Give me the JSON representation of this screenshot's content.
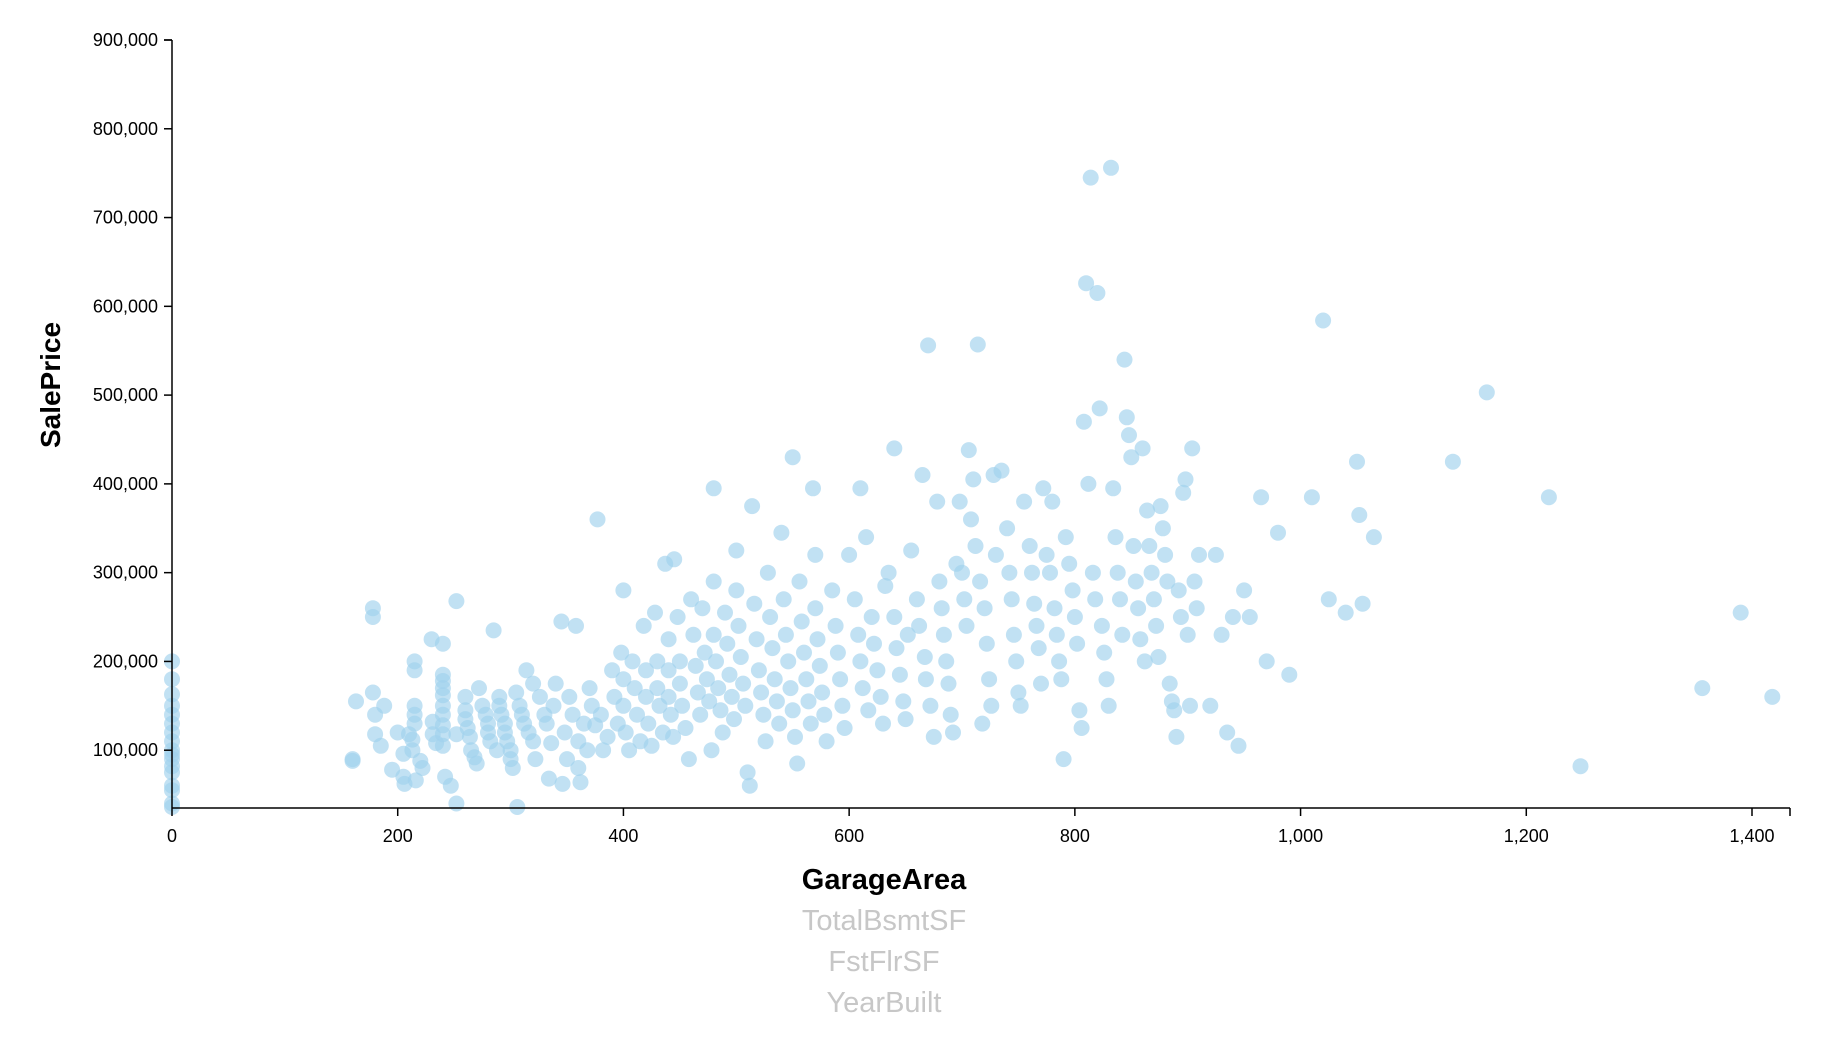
{
  "chart_data": {
    "type": "scatter",
    "xlabel": "GarageArea",
    "ylabel": "SalePrice",
    "xlim": [
      0,
      1430
    ],
    "ylim": [
      34900,
      900000
    ],
    "x_ticks": [
      0,
      200,
      400,
      600,
      800,
      1000,
      1200,
      1400
    ],
    "x_tick_labels": [
      "0",
      "200",
      "400",
      "600",
      "800",
      "1,000",
      "1,200",
      "1,400"
    ],
    "y_ticks": [
      100000,
      200000,
      300000,
      400000,
      500000,
      600000,
      700000,
      800000,
      900000
    ],
    "y_tick_labels": [
      "100,000",
      "200,000",
      "300,000",
      "400,000",
      "500,000",
      "600,000",
      "700,000",
      "800,000",
      "900,000"
    ],
    "grid": false,
    "point_color": "#9fd1ec",
    "points": [
      [
        0,
        200000
      ],
      [
        0,
        180000
      ],
      [
        0,
        163000
      ],
      [
        0,
        150000
      ],
      [
        0,
        140000
      ],
      [
        0,
        130000
      ],
      [
        0,
        120000
      ],
      [
        0,
        110000
      ],
      [
        0,
        100000
      ],
      [
        0,
        95000
      ],
      [
        0,
        90000
      ],
      [
        0,
        82000
      ],
      [
        0,
        75000
      ],
      [
        0,
        60000
      ],
      [
        0,
        55000
      ],
      [
        0,
        40000
      ],
      [
        0,
        36000
      ],
      [
        160,
        90000
      ],
      [
        160,
        88000
      ],
      [
        163,
        155000
      ],
      [
        178,
        260000
      ],
      [
        178,
        250000
      ],
      [
        178,
        165000
      ],
      [
        180,
        140000
      ],
      [
        180,
        118000
      ],
      [
        185,
        105000
      ],
      [
        188,
        150000
      ],
      [
        195,
        78000
      ],
      [
        200,
        120000
      ],
      [
        205,
        96000
      ],
      [
        205,
        70000
      ],
      [
        206,
        62000
      ],
      [
        210,
        118000
      ],
      [
        213,
        112000
      ],
      [
        213,
        100000
      ],
      [
        215,
        200000
      ],
      [
        215,
        190000
      ],
      [
        215,
        150000
      ],
      [
        215,
        140000
      ],
      [
        215,
        130000
      ],
      [
        216,
        66000
      ],
      [
        220,
        88000
      ],
      [
        222,
        80000
      ],
      [
        230,
        225000
      ],
      [
        231,
        132000
      ],
      [
        231,
        118000
      ],
      [
        234,
        108000
      ],
      [
        240,
        220000
      ],
      [
        240,
        185000
      ],
      [
        240,
        178000
      ],
      [
        240,
        170000
      ],
      [
        240,
        162000
      ],
      [
        240,
        150000
      ],
      [
        240,
        140000
      ],
      [
        240,
        128000
      ],
      [
        240,
        118000
      ],
      [
        240,
        105000
      ],
      [
        242,
        70000
      ],
      [
        247,
        60000
      ],
      [
        252,
        40000
      ],
      [
        252,
        268000
      ],
      [
        252,
        118000
      ],
      [
        260,
        160000
      ],
      [
        260,
        145000
      ],
      [
        260,
        135000
      ],
      [
        262,
        125000
      ],
      [
        264,
        115000
      ],
      [
        265,
        100000
      ],
      [
        268,
        92000
      ],
      [
        270,
        85000
      ],
      [
        272,
        170000
      ],
      [
        275,
        150000
      ],
      [
        278,
        140000
      ],
      [
        280,
        130000
      ],
      [
        280,
        120000
      ],
      [
        282,
        110000
      ],
      [
        285,
        235000
      ],
      [
        288,
        100000
      ],
      [
        290,
        160000
      ],
      [
        290,
        150000
      ],
      [
        292,
        140000
      ],
      [
        295,
        130000
      ],
      [
        295,
        120000
      ],
      [
        297,
        110000
      ],
      [
        300,
        100000
      ],
      [
        300,
        90000
      ],
      [
        302,
        80000
      ],
      [
        305,
        165000
      ],
      [
        306,
        36000
      ],
      [
        308,
        150000
      ],
      [
        310,
        140000
      ],
      [
        312,
        130000
      ],
      [
        314,
        190000
      ],
      [
        316,
        120000
      ],
      [
        320,
        175000
      ],
      [
        320,
        110000
      ],
      [
        322,
        90000
      ],
      [
        326,
        160000
      ],
      [
        330,
        140000
      ],
      [
        332,
        130000
      ],
      [
        334,
        68000
      ],
      [
        336,
        108000
      ],
      [
        338,
        150000
      ],
      [
        340,
        175000
      ],
      [
        345,
        245000
      ],
      [
        346,
        62000
      ],
      [
        348,
        120000
      ],
      [
        350,
        90000
      ],
      [
        352,
        160000
      ],
      [
        355,
        140000
      ],
      [
        358,
        240000
      ],
      [
        360,
        80000
      ],
      [
        360,
        110000
      ],
      [
        362,
        64000
      ],
      [
        365,
        130000
      ],
      [
        368,
        100000
      ],
      [
        370,
        170000
      ],
      [
        372,
        150000
      ],
      [
        375,
        128000
      ],
      [
        377,
        360000
      ],
      [
        380,
        140000
      ],
      [
        382,
        100000
      ],
      [
        386,
        115000
      ],
      [
        390,
        190000
      ],
      [
        392,
        160000
      ],
      [
        395,
        130000
      ],
      [
        398,
        210000
      ],
      [
        400,
        280000
      ],
      [
        400,
        180000
      ],
      [
        400,
        150000
      ],
      [
        402,
        120000
      ],
      [
        405,
        100000
      ],
      [
        408,
        200000
      ],
      [
        410,
        170000
      ],
      [
        412,
        140000
      ],
      [
        415,
        110000
      ],
      [
        418,
        240000
      ],
      [
        420,
        190000
      ],
      [
        420,
        160000
      ],
      [
        422,
        130000
      ],
      [
        425,
        105000
      ],
      [
        428,
        255000
      ],
      [
        430,
        200000
      ],
      [
        430,
        170000
      ],
      [
        432,
        150000
      ],
      [
        435,
        120000
      ],
      [
        437,
        310000
      ],
      [
        440,
        225000
      ],
      [
        440,
        190000
      ],
      [
        440,
        160000
      ],
      [
        442,
        140000
      ],
      [
        444,
        115000
      ],
      [
        445,
        315000
      ],
      [
        448,
        250000
      ],
      [
        450,
        200000
      ],
      [
        450,
        175000
      ],
      [
        452,
        150000
      ],
      [
        455,
        125000
      ],
      [
        458,
        90000
      ],
      [
        460,
        270000
      ],
      [
        462,
        230000
      ],
      [
        464,
        195000
      ],
      [
        466,
        165000
      ],
      [
        468,
        140000
      ],
      [
        470,
        260000
      ],
      [
        472,
        210000
      ],
      [
        474,
        180000
      ],
      [
        476,
        155000
      ],
      [
        478,
        100000
      ],
      [
        480,
        395000
      ],
      [
        480,
        290000
      ],
      [
        480,
        230000
      ],
      [
        482,
        200000
      ],
      [
        484,
        170000
      ],
      [
        486,
        145000
      ],
      [
        488,
        120000
      ],
      [
        490,
        255000
      ],
      [
        492,
        220000
      ],
      [
        494,
        185000
      ],
      [
        496,
        160000
      ],
      [
        498,
        135000
      ],
      [
        500,
        325000
      ],
      [
        500,
        280000
      ],
      [
        502,
        240000
      ],
      [
        504,
        205000
      ],
      [
        506,
        175000
      ],
      [
        508,
        150000
      ],
      [
        510,
        75000
      ],
      [
        512,
        60000
      ],
      [
        514,
        375000
      ],
      [
        516,
        265000
      ],
      [
        518,
        225000
      ],
      [
        520,
        190000
      ],
      [
        522,
        165000
      ],
      [
        524,
        140000
      ],
      [
        526,
        110000
      ],
      [
        528,
        300000
      ],
      [
        530,
        250000
      ],
      [
        532,
        215000
      ],
      [
        534,
        180000
      ],
      [
        536,
        155000
      ],
      [
        538,
        130000
      ],
      [
        540,
        345000
      ],
      [
        542,
        270000
      ],
      [
        544,
        230000
      ],
      [
        546,
        200000
      ],
      [
        548,
        170000
      ],
      [
        550,
        430000
      ],
      [
        550,
        145000
      ],
      [
        552,
        115000
      ],
      [
        554,
        85000
      ],
      [
        556,
        290000
      ],
      [
        558,
        245000
      ],
      [
        560,
        210000
      ],
      [
        562,
        180000
      ],
      [
        564,
        155000
      ],
      [
        566,
        130000
      ],
      [
        568,
        395000
      ],
      [
        570,
        320000
      ],
      [
        570,
        260000
      ],
      [
        572,
        225000
      ],
      [
        574,
        195000
      ],
      [
        576,
        165000
      ],
      [
        578,
        140000
      ],
      [
        580,
        110000
      ],
      [
        585,
        280000
      ],
      [
        588,
        240000
      ],
      [
        590,
        210000
      ],
      [
        592,
        180000
      ],
      [
        594,
        150000
      ],
      [
        596,
        125000
      ],
      [
        600,
        320000
      ],
      [
        605,
        270000
      ],
      [
        608,
        230000
      ],
      [
        610,
        395000
      ],
      [
        610,
        200000
      ],
      [
        612,
        170000
      ],
      [
        615,
        340000
      ],
      [
        617,
        145000
      ],
      [
        620,
        250000
      ],
      [
        622,
        220000
      ],
      [
        625,
        190000
      ],
      [
        628,
        160000
      ],
      [
        630,
        130000
      ],
      [
        632,
        285000
      ],
      [
        635,
        300000
      ],
      [
        640,
        440000
      ],
      [
        640,
        250000
      ],
      [
        642,
        215000
      ],
      [
        645,
        185000
      ],
      [
        648,
        155000
      ],
      [
        650,
        135000
      ],
      [
        652,
        230000
      ],
      [
        655,
        325000
      ],
      [
        660,
        270000
      ],
      [
        662,
        240000
      ],
      [
        665,
        410000
      ],
      [
        667,
        205000
      ],
      [
        668,
        180000
      ],
      [
        670,
        556000
      ],
      [
        672,
        150000
      ],
      [
        675,
        115000
      ],
      [
        678,
        380000
      ],
      [
        680,
        290000
      ],
      [
        682,
        260000
      ],
      [
        684,
        230000
      ],
      [
        686,
        200000
      ],
      [
        688,
        175000
      ],
      [
        690,
        140000
      ],
      [
        692,
        120000
      ],
      [
        695,
        310000
      ],
      [
        698,
        380000
      ],
      [
        700,
        300000
      ],
      [
        702,
        270000
      ],
      [
        704,
        240000
      ],
      [
        706,
        438000
      ],
      [
        708,
        360000
      ],
      [
        710,
        405000
      ],
      [
        712,
        330000
      ],
      [
        714,
        557000
      ],
      [
        716,
        290000
      ],
      [
        718,
        130000
      ],
      [
        720,
        260000
      ],
      [
        722,
        220000
      ],
      [
        724,
        180000
      ],
      [
        726,
        150000
      ],
      [
        728,
        410000
      ],
      [
        730,
        320000
      ],
      [
        735,
        415000
      ],
      [
        740,
        350000
      ],
      [
        742,
        300000
      ],
      [
        744,
        270000
      ],
      [
        746,
        230000
      ],
      [
        748,
        200000
      ],
      [
        750,
        165000
      ],
      [
        752,
        150000
      ],
      [
        755,
        380000
      ],
      [
        760,
        330000
      ],
      [
        762,
        300000
      ],
      [
        764,
        265000
      ],
      [
        766,
        240000
      ],
      [
        768,
        215000
      ],
      [
        770,
        175000
      ],
      [
        772,
        395000
      ],
      [
        775,
        320000
      ],
      [
        778,
        300000
      ],
      [
        780,
        380000
      ],
      [
        782,
        260000
      ],
      [
        784,
        230000
      ],
      [
        786,
        200000
      ],
      [
        788,
        180000
      ],
      [
        790,
        90000
      ],
      [
        792,
        340000
      ],
      [
        795,
        310000
      ],
      [
        798,
        280000
      ],
      [
        800,
        250000
      ],
      [
        802,
        220000
      ],
      [
        804,
        145000
      ],
      [
        806,
        125000
      ],
      [
        808,
        470000
      ],
      [
        810,
        626000
      ],
      [
        812,
        400000
      ],
      [
        814,
        745000
      ],
      [
        816,
        300000
      ],
      [
        818,
        270000
      ],
      [
        820,
        615000
      ],
      [
        822,
        485000
      ],
      [
        824,
        240000
      ],
      [
        826,
        210000
      ],
      [
        828,
        180000
      ],
      [
        830,
        150000
      ],
      [
        832,
        756000
      ],
      [
        834,
        395000
      ],
      [
        836,
        340000
      ],
      [
        838,
        300000
      ],
      [
        840,
        270000
      ],
      [
        842,
        230000
      ],
      [
        844,
        540000
      ],
      [
        846,
        475000
      ],
      [
        848,
        455000
      ],
      [
        850,
        430000
      ],
      [
        852,
        330000
      ],
      [
        854,
        290000
      ],
      [
        856,
        260000
      ],
      [
        858,
        225000
      ],
      [
        860,
        440000
      ],
      [
        862,
        200000
      ],
      [
        864,
        370000
      ],
      [
        866,
        330000
      ],
      [
        868,
        300000
      ],
      [
        870,
        270000
      ],
      [
        872,
        240000
      ],
      [
        874,
        205000
      ],
      [
        876,
        375000
      ],
      [
        878,
        350000
      ],
      [
        880,
        320000
      ],
      [
        882,
        290000
      ],
      [
        884,
        175000
      ],
      [
        886,
        155000
      ],
      [
        888,
        145000
      ],
      [
        890,
        115000
      ],
      [
        892,
        280000
      ],
      [
        894,
        250000
      ],
      [
        896,
        390000
      ],
      [
        898,
        405000
      ],
      [
        900,
        230000
      ],
      [
        902,
        150000
      ],
      [
        904,
        440000
      ],
      [
        906,
        290000
      ],
      [
        908,
        260000
      ],
      [
        910,
        320000
      ],
      [
        920,
        150000
      ],
      [
        925,
        320000
      ],
      [
        930,
        230000
      ],
      [
        935,
        120000
      ],
      [
        940,
        250000
      ],
      [
        945,
        105000
      ],
      [
        950,
        280000
      ],
      [
        955,
        250000
      ],
      [
        965,
        385000
      ],
      [
        970,
        200000
      ],
      [
        980,
        345000
      ],
      [
        990,
        185000
      ],
      [
        1010,
        385000
      ],
      [
        1020,
        584000
      ],
      [
        1025,
        270000
      ],
      [
        1040,
        255000
      ],
      [
        1050,
        425000
      ],
      [
        1052,
        365000
      ],
      [
        1055,
        265000
      ],
      [
        1065,
        340000
      ],
      [
        1135,
        425000
      ],
      [
        1165,
        503000
      ],
      [
        1220,
        385000
      ],
      [
        1248,
        82000
      ],
      [
        1356,
        170000
      ],
      [
        1390,
        255000
      ],
      [
        1418,
        160000
      ]
    ]
  },
  "variable_menu": {
    "options": [
      {
        "label": "GarageArea",
        "active": true
      },
      {
        "label": "TotalBsmtSF",
        "active": false
      },
      {
        "label": "FstFlrSF",
        "active": false
      },
      {
        "label": "YearBuilt",
        "active": false
      }
    ]
  }
}
